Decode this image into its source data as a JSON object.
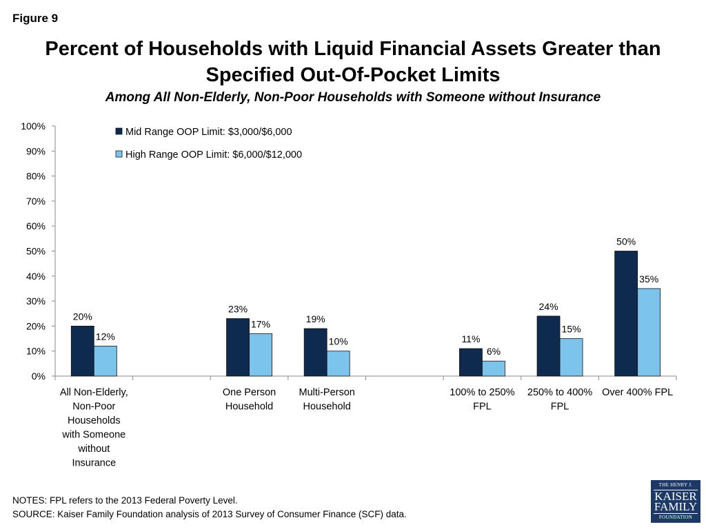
{
  "figure_label": "Figure 9",
  "title_lines": [
    "Percent of Households with Liquid Financial Assets Greater than",
    "Specified Out-Of-Pocket Limits"
  ],
  "subtitle": "Among All Non-Elderly, Non-Poor Households with Someone without Insurance",
  "notes": [
    "NOTES: FPL refers to the 2013 Federal Poverty Level.",
    "SOURCE: Kaiser Family Foundation analysis of 2013 Survey of Consumer Finance (SCF) data."
  ],
  "logo": {
    "line1": "THE HENRY J.",
    "line2": "KAISER",
    "line3": "FAMILY",
    "line4": "FOUNDATION"
  },
  "chart_data": {
    "type": "bar",
    "ylim": [
      0,
      100
    ],
    "yticks": [
      "0%",
      "10%",
      "20%",
      "30%",
      "40%",
      "50%",
      "60%",
      "70%",
      "80%",
      "90%",
      "100%"
    ],
    "legend_position": "top-left",
    "categories": [
      [
        "All Non-Elderly,",
        "Non-Poor",
        "Households",
        "with Someone",
        "without",
        "Insurance"
      ],
      [],
      [
        "One Person",
        "Household"
      ],
      [
        "Multi-Person",
        "Household"
      ],
      [],
      [
        "100% to 250%",
        "FPL"
      ],
      [
        "250% to 400%",
        "FPL"
      ],
      [
        "Over 400% FPL"
      ]
    ],
    "series": [
      {
        "name": "Mid Range OOP Limit: $3,000/$6,000",
        "color": "#0e2a4f",
        "values": [
          20,
          null,
          23,
          19,
          null,
          11,
          24,
          50
        ],
        "labels": [
          "20%",
          null,
          "23%",
          "19%",
          null,
          "11%",
          "24%",
          "50%"
        ]
      },
      {
        "name": "High Range OOP Limit: $6,000/$12,000",
        "color": "#7cc4ec",
        "values": [
          12,
          null,
          17,
          10,
          null,
          6,
          15,
          35
        ],
        "labels": [
          "12%",
          null,
          "17%",
          "10%",
          null,
          "6%",
          "15%",
          "35%"
        ]
      }
    ]
  }
}
